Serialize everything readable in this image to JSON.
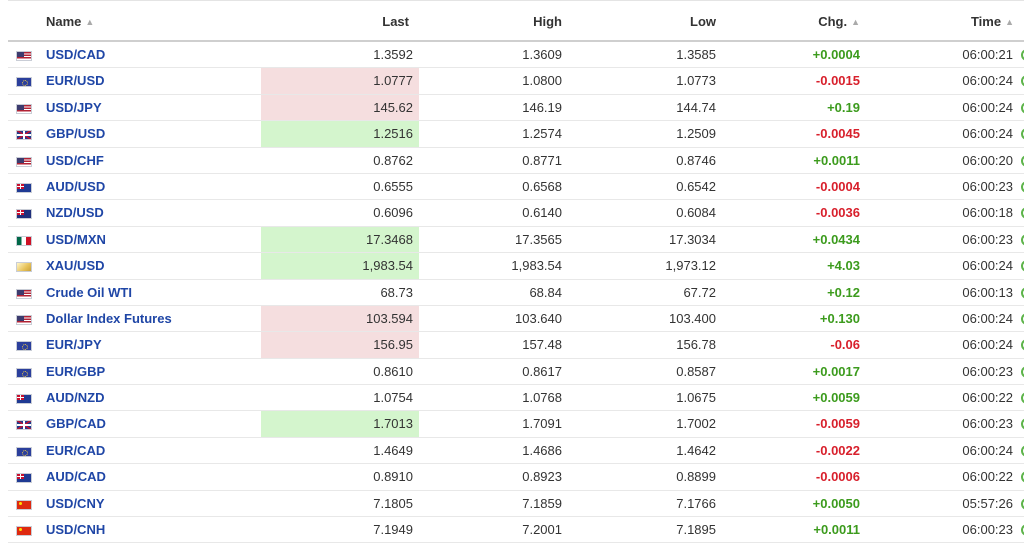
{
  "columns": {
    "name": "Name",
    "last": "Last",
    "high": "High",
    "low": "Low",
    "chg": "Chg.",
    "time": "Time",
    "sort_icon": "sort-arrows-icon"
  },
  "colors": {
    "name_link": "#1f46a6",
    "positive": "#3c9b1d",
    "negative": "#d8202c",
    "flash_down_bg": "#f5dedf",
    "flash_up_bg": "#d4f5cd",
    "status_dot": "#5db44a"
  },
  "rows": [
    {
      "flag": "us",
      "name": "USD/CAD",
      "last": "1.3592",
      "high": "1.3609",
      "low": "1.3585",
      "chg": "+0.0004",
      "dir": "pos",
      "time": "06:00:21",
      "flash": ""
    },
    {
      "flag": "eu",
      "name": "EUR/USD",
      "last": "1.0777",
      "high": "1.0800",
      "low": "1.0773",
      "chg": "-0.0015",
      "dir": "neg",
      "time": "06:00:24",
      "flash": "down"
    },
    {
      "flag": "us",
      "name": "USD/JPY",
      "last": "145.62",
      "high": "146.19",
      "low": "144.74",
      "chg": "+0.19",
      "dir": "pos",
      "time": "06:00:24",
      "flash": "down"
    },
    {
      "flag": "gb",
      "name": "GBP/USD",
      "last": "1.2516",
      "high": "1.2574",
      "low": "1.2509",
      "chg": "-0.0045",
      "dir": "neg",
      "time": "06:00:24",
      "flash": "up"
    },
    {
      "flag": "us",
      "name": "USD/CHF",
      "last": "0.8762",
      "high": "0.8771",
      "low": "0.8746",
      "chg": "+0.0011",
      "dir": "pos",
      "time": "06:00:20",
      "flash": ""
    },
    {
      "flag": "au",
      "name": "AUD/USD",
      "last": "0.6555",
      "high": "0.6568",
      "low": "0.6542",
      "chg": "-0.0004",
      "dir": "neg",
      "time": "06:00:23",
      "flash": ""
    },
    {
      "flag": "nz",
      "name": "NZD/USD",
      "last": "0.6096",
      "high": "0.6140",
      "low": "0.6084",
      "chg": "-0.0036",
      "dir": "neg",
      "time": "06:00:18",
      "flash": ""
    },
    {
      "flag": "mx",
      "name": "USD/MXN",
      "last": "17.3468",
      "high": "17.3565",
      "low": "17.3034",
      "chg": "+0.0434",
      "dir": "pos",
      "time": "06:00:23",
      "flash": "up"
    },
    {
      "flag": "gold",
      "name": "XAU/USD",
      "last": "1,983.54",
      "high": "1,983.54",
      "low": "1,973.12",
      "chg": "+4.03",
      "dir": "pos",
      "time": "06:00:24",
      "flash": "up"
    },
    {
      "flag": "us",
      "name": "Crude Oil WTI",
      "last": "68.73",
      "high": "68.84",
      "low": "67.72",
      "chg": "+0.12",
      "dir": "pos",
      "time": "06:00:13",
      "flash": ""
    },
    {
      "flag": "us",
      "name": "Dollar Index Futures",
      "last": "103.594",
      "high": "103.640",
      "low": "103.400",
      "chg": "+0.130",
      "dir": "pos",
      "time": "06:00:24",
      "flash": "down"
    },
    {
      "flag": "eu",
      "name": "EUR/JPY",
      "last": "156.95",
      "high": "157.48",
      "low": "156.78",
      "chg": "-0.06",
      "dir": "neg",
      "time": "06:00:24",
      "flash": "down"
    },
    {
      "flag": "eu",
      "name": "EUR/GBP",
      "last": "0.8610",
      "high": "0.8617",
      "low": "0.8587",
      "chg": "+0.0017",
      "dir": "pos",
      "time": "06:00:23",
      "flash": ""
    },
    {
      "flag": "au",
      "name": "AUD/NZD",
      "last": "1.0754",
      "high": "1.0768",
      "low": "1.0675",
      "chg": "+0.0059",
      "dir": "pos",
      "time": "06:00:22",
      "flash": ""
    },
    {
      "flag": "gb",
      "name": "GBP/CAD",
      "last": "1.7013",
      "high": "1.7091",
      "low": "1.7002",
      "chg": "-0.0059",
      "dir": "neg",
      "time": "06:00:23",
      "flash": "up"
    },
    {
      "flag": "eu",
      "name": "EUR/CAD",
      "last": "1.4649",
      "high": "1.4686",
      "low": "1.4642",
      "chg": "-0.0022",
      "dir": "neg",
      "time": "06:00:24",
      "flash": ""
    },
    {
      "flag": "au",
      "name": "AUD/CAD",
      "last": "0.8910",
      "high": "0.8923",
      "low": "0.8899",
      "chg": "-0.0006",
      "dir": "neg",
      "time": "06:00:22",
      "flash": ""
    },
    {
      "flag": "cn",
      "name": "USD/CNY",
      "last": "7.1805",
      "high": "7.1859",
      "low": "7.1766",
      "chg": "+0.0050",
      "dir": "pos",
      "time": "05:57:26",
      "flash": ""
    },
    {
      "flag": "cn",
      "name": "USD/CNH",
      "last": "7.1949",
      "high": "7.2001",
      "low": "7.1895",
      "chg": "+0.0011",
      "dir": "pos",
      "time": "06:00:23",
      "flash": ""
    }
  ]
}
